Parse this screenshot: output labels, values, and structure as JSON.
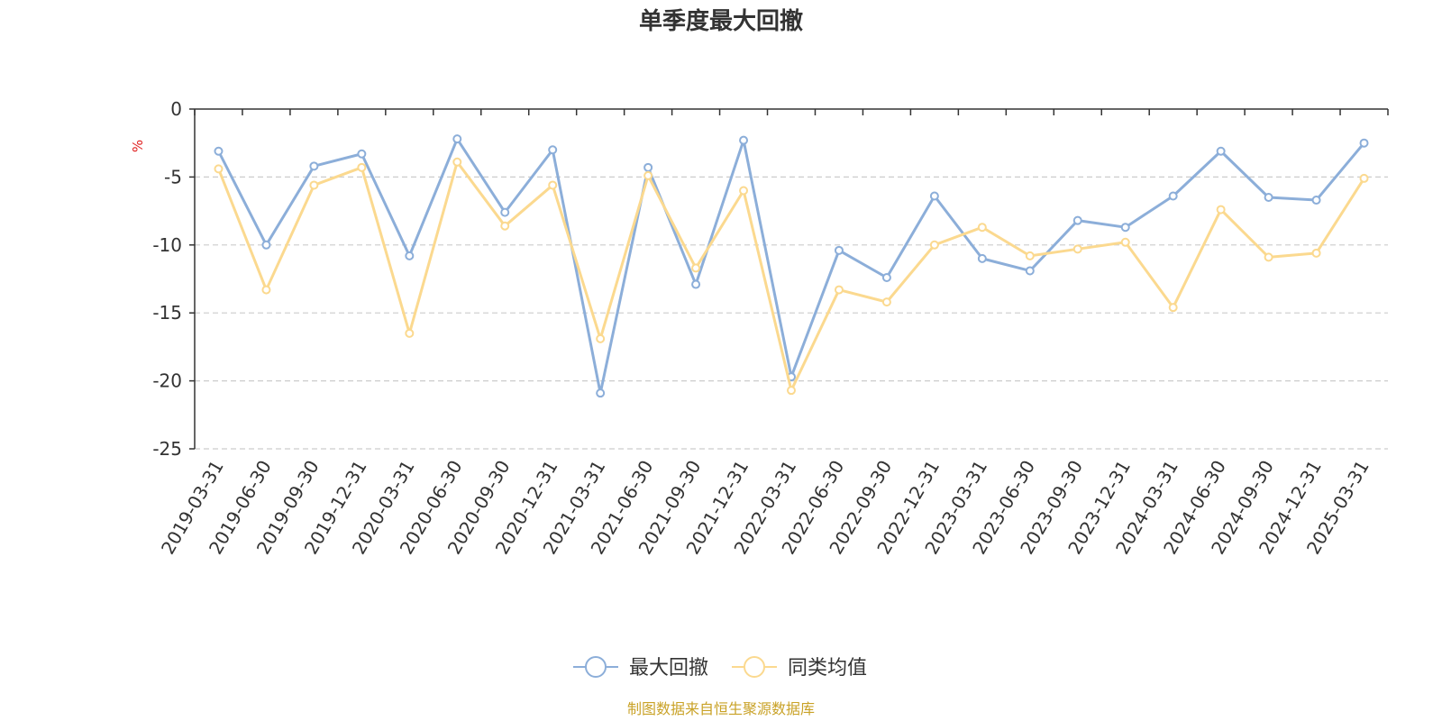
{
  "chart_data": {
    "type": "line",
    "title": "单季度最大回撤",
    "ylabel": "%",
    "ylim": [
      -25,
      0
    ],
    "yticks": [
      0,
      -5,
      -10,
      -15,
      -20,
      -25
    ],
    "grid": true,
    "legend_position": "bottom",
    "categories": [
      "2019-03-31",
      "2019-06-30",
      "2019-09-30",
      "2019-12-31",
      "2020-03-31",
      "2020-06-30",
      "2020-09-30",
      "2020-12-31",
      "2021-03-31",
      "2021-06-30",
      "2021-09-30",
      "2021-12-31",
      "2022-03-31",
      "2022-06-30",
      "2022-09-30",
      "2022-12-31",
      "2023-03-31",
      "2023-06-30",
      "2023-09-30",
      "2023-12-31",
      "2024-03-31",
      "2024-06-30",
      "2024-09-30",
      "2024-12-31",
      "2025-03-31"
    ],
    "series": [
      {
        "name": "最大回撤",
        "color": "#8caed9",
        "values": [
          -3.1,
          -10.0,
          -4.2,
          -3.3,
          -10.8,
          -2.2,
          -7.6,
          -3.0,
          -20.9,
          -4.3,
          -12.9,
          -2.3,
          -19.7,
          -10.4,
          -12.4,
          -6.4,
          -11.0,
          -11.9,
          -8.2,
          -8.7,
          -6.4,
          -3.1,
          -6.5,
          -6.7,
          -2.5
        ]
      },
      {
        "name": "同类均值",
        "color": "#fbd98f",
        "values": [
          -4.4,
          -13.3,
          -5.6,
          -4.3,
          -16.5,
          -3.9,
          -8.6,
          -5.6,
          -16.9,
          -4.9,
          -11.7,
          -6.0,
          -20.7,
          -13.3,
          -14.2,
          -10.0,
          -8.7,
          -10.8,
          -10.3,
          -9.8,
          -14.6,
          -7.4,
          -10.9,
          -10.6,
          -5.1
        ]
      }
    ]
  },
  "footer": {
    "source": "制图数据来自恒生聚源数据库"
  }
}
